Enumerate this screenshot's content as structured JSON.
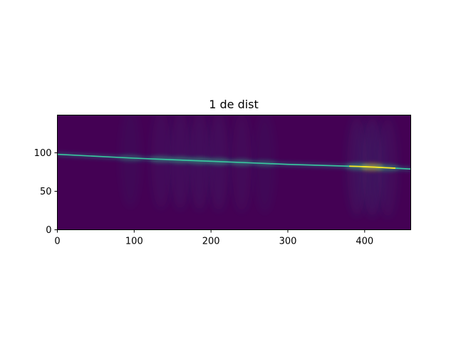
{
  "chart_data": {
    "type": "heatmap",
    "title": "1 de dist",
    "xlabel": "",
    "ylabel": "",
    "xlim": [
      0,
      460
    ],
    "ylim": [
      0,
      149
    ],
    "x_ticks": [
      0,
      100,
      200,
      300,
      400
    ],
    "y_ticks": [
      0,
      50,
      100
    ],
    "colormap": "viridis",
    "background_color": "#440154",
    "ridge": {
      "x": [
        0,
        50,
        100,
        150,
        200,
        250,
        300,
        350,
        400,
        460
      ],
      "y": [
        98,
        95.5,
        93,
        91,
        89,
        87,
        85,
        83.5,
        82,
        79
      ]
    },
    "hotspots": [
      {
        "x": 95,
        "intensity": 0.35
      },
      {
        "x": 135,
        "intensity": 0.55
      },
      {
        "x": 160,
        "intensity": 0.6
      },
      {
        "x": 185,
        "intensity": 0.65
      },
      {
        "x": 210,
        "intensity": 0.6
      },
      {
        "x": 240,
        "intensity": 0.5
      },
      {
        "x": 270,
        "intensity": 0.35
      },
      {
        "x": 390,
        "intensity": 0.75
      },
      {
        "x": 410,
        "intensity": 0.9
      },
      {
        "x": 430,
        "intensity": 0.6
      }
    ],
    "grid": false
  }
}
